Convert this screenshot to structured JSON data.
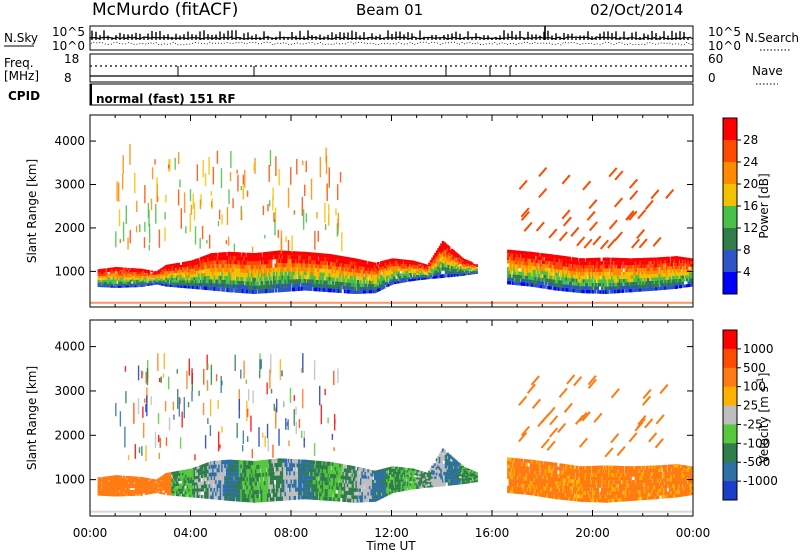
{
  "header": {
    "station": "McMurdo (fitACF)",
    "beam": "Beam 01",
    "date": "02/Oct/2014"
  },
  "summary": {
    "nsky_label": "N.Sky",
    "nsearch_label": "N.Search",
    "freq_label_line1": "Freq.",
    "freq_label_line2": "[MHz]",
    "nave_label": "Nave",
    "cpid_label": "CPID",
    "cpid_value": "normal (fast) 151 RF",
    "noise_ticks": [
      "10^5",
      "10^0"
    ],
    "freq_ticks": [
      "18",
      "8"
    ],
    "nave_ticks": [
      "60",
      "0"
    ]
  },
  "chart_data": [
    {
      "type": "heatmap",
      "panel": "power",
      "ylabel": "Slant Range [km]",
      "xlabel": "",
      "yticks": [
        1000,
        2000,
        3000,
        4000
      ],
      "ylim": [
        180,
        4600
      ],
      "colorbar_label": "Power [dB]",
      "colorbar_ticks": [
        "4",
        "8",
        "12",
        "16",
        "20",
        "24",
        "28"
      ],
      "colorbar_colors": [
        "#0000ff",
        "#2d55c8",
        "#2e7d4a",
        "#49c049",
        "#f2c200",
        "#ff8a00",
        "#ff4a00",
        "#ff0000"
      ]
    },
    {
      "type": "heatmap",
      "panel": "velocity",
      "ylabel": "Slant Range [km]",
      "xlabel": "Time UT",
      "yticks": [
        1000,
        2000,
        3000,
        4000
      ],
      "ylim": [
        180,
        4600
      ],
      "colorbar_label": "Velocity [m s^-1]",
      "colorbar_ticks": [
        "1000",
        "500",
        "100",
        "25",
        "-25",
        "-100",
        "-500",
        "-1000"
      ],
      "colorbar_colors": [
        "#1a3cc8",
        "#2f6fa8",
        "#2e7d4a",
        "#55c83c",
        "#bebebe",
        "#ffb000",
        "#ff7a10",
        "#ff4a00",
        "#ff0000"
      ],
      "xticks": [
        "00:00",
        "04:00",
        "08:00",
        "12:00",
        "16:00",
        "20:00",
        "00:00"
      ],
      "xlim": [
        0,
        24
      ]
    }
  ]
}
